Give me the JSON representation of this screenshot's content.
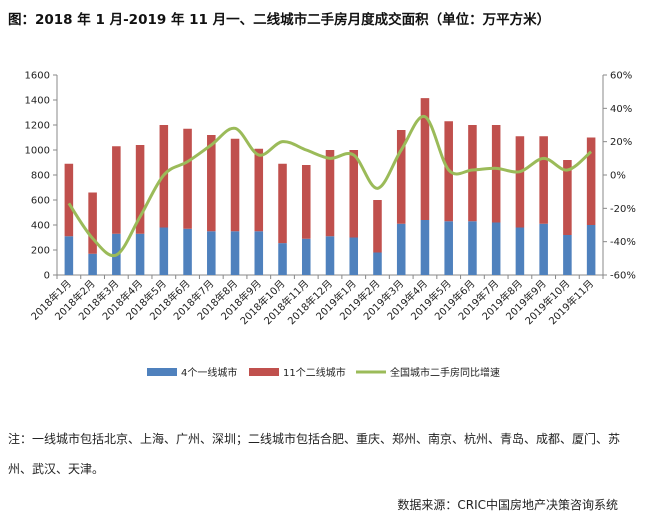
{
  "title": "图：2018 年 1 月-2019 年 11 月一、二线城市二手房月度成交面积（单位：万平方米）",
  "note": "注：一线城市包括北京、上海、广州、深圳；二线城市包括合肥、重庆、郑州、南京、杭州、青岛、成都、厦门、苏州、武汉、天津。",
  "source": "数据来源：CRIC中国房地产决策咨询系统",
  "chart_data": {
    "type": "bar",
    "stacked": true,
    "categories": [
      "2018年1月",
      "2018年2月",
      "2018年3月",
      "2018年4月",
      "2018年5月",
      "2018年6月",
      "2018年7月",
      "2018年8月",
      "2018年9月",
      "2018年10月",
      "2018年11月",
      "2018年12月",
      "2019年1月",
      "2019年2月",
      "2019年3月",
      "2019年4月",
      "2019年5月",
      "2019年6月",
      "2019年7月",
      "2019年8月",
      "2019年9月",
      "2019年10月",
      "2019年11月"
    ],
    "series": [
      {
        "name": "4个一线城市",
        "type": "bar",
        "axis": "left",
        "color": "#4f81bd",
        "values": [
          310,
          170,
          330,
          330,
          380,
          370,
          350,
          350,
          350,
          255,
          290,
          310,
          300,
          180,
          410,
          440,
          430,
          430,
          420,
          380,
          410,
          320,
          400
        ]
      },
      {
        "name": "11个二线城市",
        "type": "bar",
        "axis": "left",
        "color": "#c0504d",
        "values": [
          580,
          490,
          700,
          710,
          820,
          800,
          770,
          740,
          660,
          635,
          590,
          690,
          700,
          420,
          750,
          975,
          800,
          770,
          780,
          730,
          700,
          600,
          700
        ]
      },
      {
        "name": "全国城市二手房同比增速",
        "type": "line",
        "axis": "right",
        "color": "#9bbb59",
        "unit": "%",
        "values": [
          -17,
          -38,
          -48,
          -25,
          0,
          8,
          18,
          28,
          12,
          20,
          15,
          10,
          12,
          -8,
          15,
          35,
          3,
          3,
          4,
          2,
          10,
          3,
          14
        ]
      }
    ],
    "y_left": {
      "min": 0,
      "max": 1600,
      "step": 200,
      "ticks": [
        "0",
        "200",
        "400",
        "600",
        "800",
        "1000",
        "1200",
        "1400",
        "1600"
      ]
    },
    "y_right": {
      "min": -60,
      "max": 60,
      "step": 20,
      "ticks": [
        "-60%",
        "-40%",
        "-20%",
        "0%",
        "20%",
        "40%",
        "60%"
      ]
    },
    "grid": false,
    "legend_position": "bottom"
  },
  "colors": {
    "bar1": "#4f81bd",
    "bar2": "#c0504d",
    "line": "#9bbb59",
    "axis": "#888888"
  }
}
